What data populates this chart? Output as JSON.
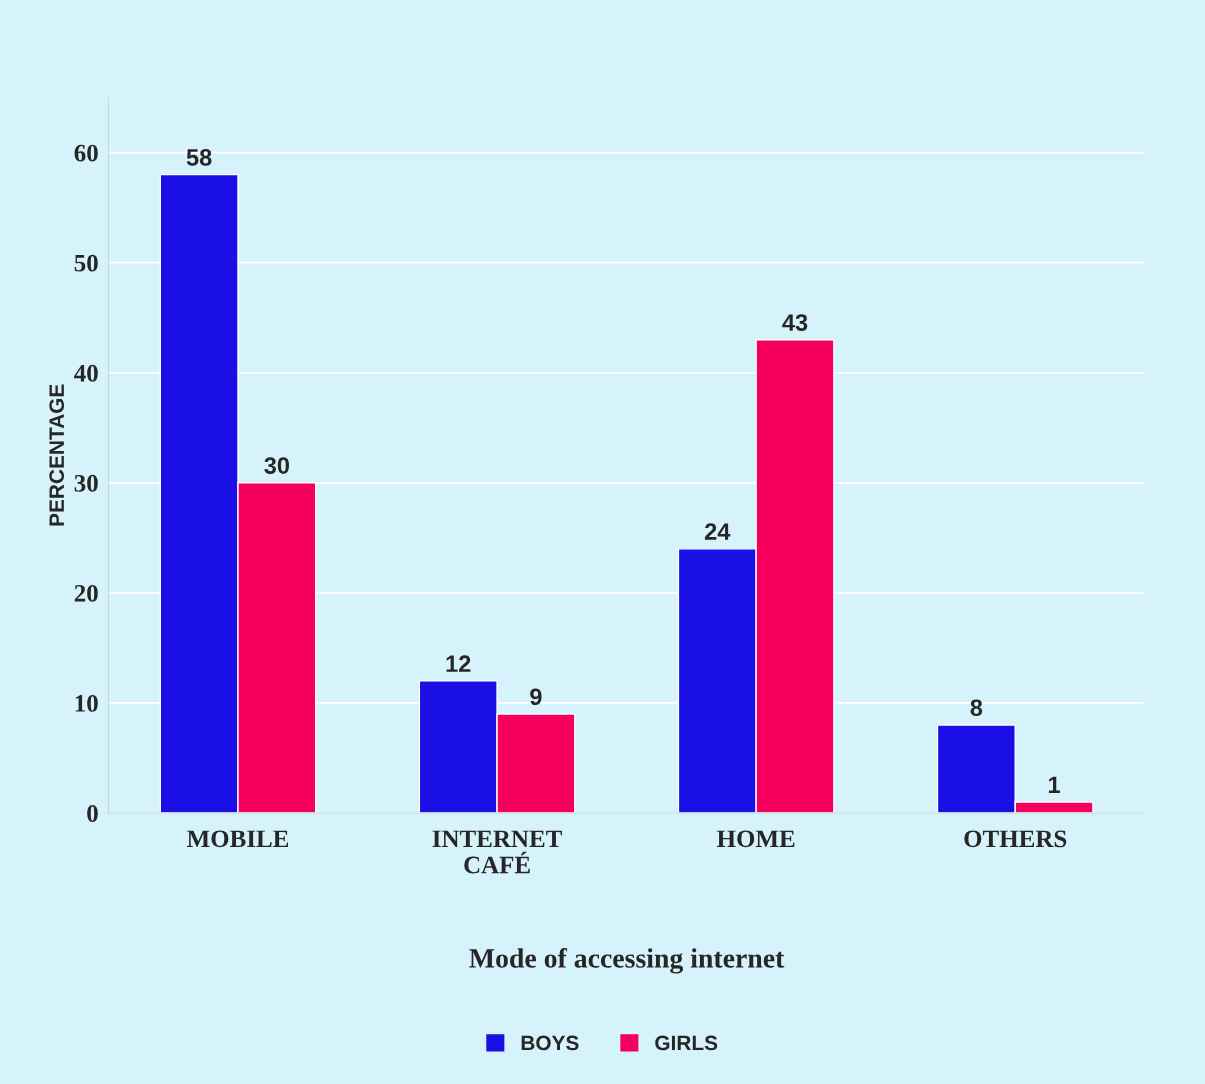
{
  "chart_data": {
    "type": "bar",
    "xlabel": "Mode of accessing internet",
    "ylabel": "PERCENTAGE",
    "categories": [
      "MOBILE",
      "INTERNET\nCAFÉ",
      "HOME",
      "OTHERS"
    ],
    "series": [
      {
        "name": "BOYS",
        "color": "#1a10e6",
        "values": [
          58,
          12,
          24,
          8
        ]
      },
      {
        "name": "GIRLS",
        "color": "#f5005f",
        "values": [
          30,
          9,
          43,
          1
        ]
      }
    ],
    "ylim": [
      0,
      65
    ],
    "yticks": [
      0,
      10,
      20,
      30,
      40,
      50,
      60
    ],
    "grid": "y",
    "legend": "bottom",
    "data_labels": true
  }
}
